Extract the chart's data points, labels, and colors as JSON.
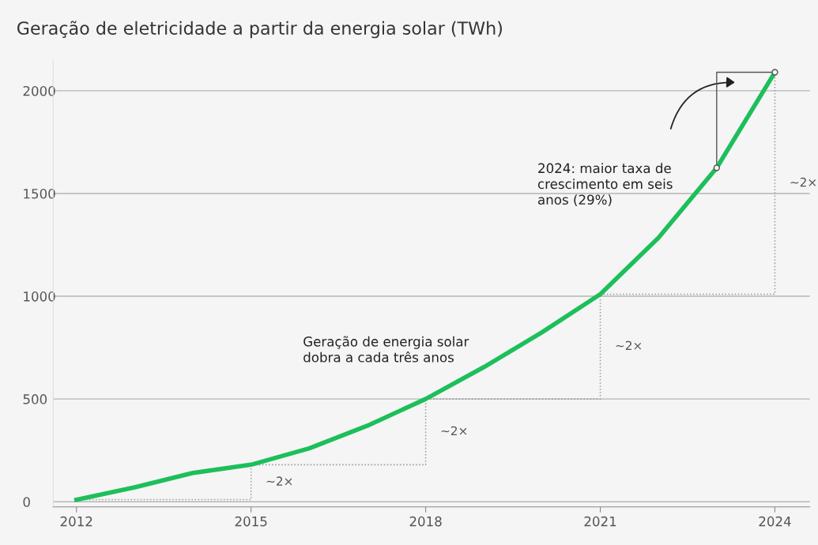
{
  "chart_data": {
    "type": "line",
    "title": "Geração de eletricidade a partir da energia solar (TWh)",
    "x": [
      2012,
      2013,
      2014,
      2015,
      2016,
      2017,
      2018,
      2019,
      2020,
      2021,
      2022,
      2023,
      2024
    ],
    "series": [
      {
        "color": "#1dbf5a",
        "values": [
          10,
          70,
          140,
          180,
          260,
          370,
          500,
          655,
          825,
          1010,
          1285,
          1625,
          2090
        ]
      },
      {
        "type": "line",
        "color": "#999999",
        "line_style": "dotted",
        "x": [
          2012,
          2015,
          2015,
          2018,
          2018,
          2021,
          2021,
          2024,
          2024
        ],
        "values": [
          10,
          10,
          180,
          180,
          500,
          500,
          1010,
          1010,
          2090
        ]
      }
    ],
    "xlim": [
      2011.6,
      2024.6
    ],
    "xticks": [
      2012,
      2015,
      2018,
      2021,
      2024
    ],
    "ylim": [
      -25,
      2150
    ],
    "yticks": [
      0,
      500,
      1000,
      1500,
      2000
    ],
    "grid": "y",
    "marker": "none",
    "line_style": "solid",
    "annotations": [
      "~2×",
      "~2×",
      "~2×",
      "~2×",
      "Geração de energia solar\ndobra a cada três anos",
      "2024: maior taxa de\ncrescimento em seis\nanos (29%)"
    ]
  }
}
